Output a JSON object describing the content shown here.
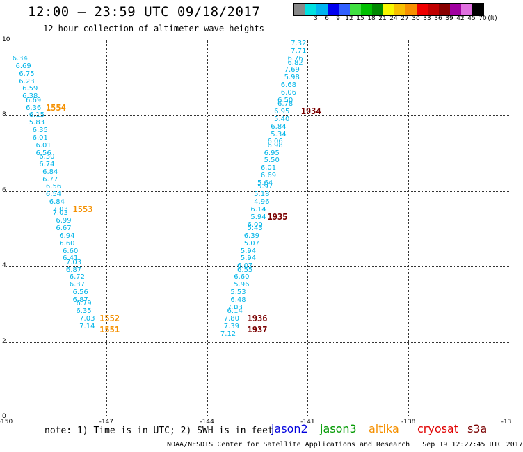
{
  "header": {
    "title": "12:00 – 23:59 UTC 09/18/2017",
    "subtitle": "12 hour collection of altimeter wave heights"
  },
  "legend": {
    "unit": "(ft)",
    "items": [
      {
        "label": "",
        "color": "#888888"
      },
      {
        "label": "3",
        "color": "#00e0e0"
      },
      {
        "label": "6",
        "color": "#00b4f0"
      },
      {
        "label": "9",
        "color": "#0000f0"
      },
      {
        "label": "12",
        "color": "#3060ff"
      },
      {
        "label": "15",
        "color": "#40e040"
      },
      {
        "label": "18",
        "color": "#00c000"
      },
      {
        "label": "21",
        "color": "#008800"
      },
      {
        "label": "24",
        "color": "#f8f800"
      },
      {
        "label": "27",
        "color": "#f8c000"
      },
      {
        "label": "30",
        "color": "#f89000"
      },
      {
        "label": "33",
        "color": "#f00000"
      },
      {
        "label": "36",
        "color": "#c00000"
      },
      {
        "label": "39",
        "color": "#880000"
      },
      {
        "label": "42",
        "color": "#a000a0"
      },
      {
        "label": "45",
        "color": "#e070e0"
      },
      {
        "label": "70",
        "color": "#000000"
      }
    ]
  },
  "axes": {
    "yticks": [
      "10",
      "8",
      "6",
      "4",
      "2",
      "0"
    ],
    "xticks": [
      "-150",
      "-147",
      "-144",
      "-141",
      "-138",
      "-13"
    ]
  },
  "chart_data": {
    "type": "scatter",
    "xlim": [
      -150,
      -135
    ],
    "ylim": [
      0,
      10
    ],
    "tracks": [
      {
        "name": "left-track",
        "points": [
          {
            "x": -149.8,
            "y": 9.5,
            "value": "6.34"
          },
          {
            "x": -149.7,
            "y": 9.3,
            "value": "6.69"
          },
          {
            "x": -149.6,
            "y": 9.1,
            "value": "6.75"
          },
          {
            "x": -149.6,
            "y": 8.9,
            "value": "6.23"
          },
          {
            "x": -149.5,
            "y": 8.7,
            "value": "6.59"
          },
          {
            "x": -149.5,
            "y": 8.5,
            "value": "6.38"
          },
          {
            "x": -149.4,
            "y": 8.4,
            "value": "6.69"
          },
          {
            "x": -149.4,
            "y": 8.2,
            "value": "6.36"
          },
          {
            "x": -149.3,
            "y": 8.0,
            "value": "6.15"
          },
          {
            "x": -149.3,
            "y": 7.8,
            "value": "5.83"
          },
          {
            "x": -149.2,
            "y": 7.6,
            "value": "6.35"
          },
          {
            "x": -149.2,
            "y": 7.4,
            "value": "6.01"
          },
          {
            "x": -149.1,
            "y": 7.2,
            "value": "6.01"
          },
          {
            "x": -149.1,
            "y": 7.0,
            "value": "6.56"
          },
          {
            "x": -149.0,
            "y": 6.9,
            "value": "6.30"
          },
          {
            "x": -149.0,
            "y": 6.7,
            "value": "6.74"
          },
          {
            "x": -148.9,
            "y": 6.5,
            "value": "6.84"
          },
          {
            "x": -148.9,
            "y": 6.3,
            "value": "6.77"
          },
          {
            "x": -148.8,
            "y": 6.1,
            "value": "6.56"
          },
          {
            "x": -148.8,
            "y": 5.9,
            "value": "6.54"
          },
          {
            "x": -148.7,
            "y": 5.7,
            "value": "6.84"
          },
          {
            "x": -148.6,
            "y": 5.5,
            "value": "7.03"
          },
          {
            "x": -148.6,
            "y": 5.4,
            "value": "7.03"
          },
          {
            "x": -148.5,
            "y": 5.2,
            "value": "6.99"
          },
          {
            "x": -148.5,
            "y": 5.0,
            "value": "6.67"
          },
          {
            "x": -148.4,
            "y": 4.8,
            "value": "6.94"
          },
          {
            "x": -148.4,
            "y": 4.6,
            "value": "6.60"
          },
          {
            "x": -148.3,
            "y": 4.4,
            "value": "6.60"
          },
          {
            "x": -148.3,
            "y": 4.2,
            "value": "6.41"
          },
          {
            "x": -148.2,
            "y": 4.1,
            "value": "7.03"
          },
          {
            "x": -148.2,
            "y": 3.9,
            "value": "6.87"
          },
          {
            "x": -148.1,
            "y": 3.7,
            "value": "6.72"
          },
          {
            "x": -148.1,
            "y": 3.5,
            "value": "6.37"
          },
          {
            "x": -148.0,
            "y": 3.3,
            "value": "6.56"
          },
          {
            "x": -148.0,
            "y": 3.1,
            "value": "6.87"
          },
          {
            "x": -147.9,
            "y": 3.0,
            "value": "6.79"
          },
          {
            "x": -147.9,
            "y": 2.8,
            "value": "6.35"
          },
          {
            "x": -147.8,
            "y": 2.6,
            "value": "7.03"
          },
          {
            "x": -147.8,
            "y": 2.4,
            "value": "7.14"
          }
        ]
      },
      {
        "name": "right-track",
        "points": [
          {
            "x": -141.5,
            "y": 9.9,
            "value": "7.32"
          },
          {
            "x": -141.5,
            "y": 9.7,
            "value": "7.71"
          },
          {
            "x": -141.6,
            "y": 9.5,
            "value": "6.76"
          },
          {
            "x": -141.6,
            "y": 9.4,
            "value": "6.82"
          },
          {
            "x": -141.7,
            "y": 9.2,
            "value": "7.69"
          },
          {
            "x": -141.7,
            "y": 9.0,
            "value": "5.98"
          },
          {
            "x": -141.8,
            "y": 8.8,
            "value": "6.68"
          },
          {
            "x": -141.8,
            "y": 8.6,
            "value": "6.06"
          },
          {
            "x": -141.9,
            "y": 8.4,
            "value": "6.50"
          },
          {
            "x": -141.9,
            "y": 8.3,
            "value": "6.78"
          },
          {
            "x": -142.0,
            "y": 8.1,
            "value": "6.95"
          },
          {
            "x": -142.0,
            "y": 7.9,
            "value": "5.40"
          },
          {
            "x": -142.1,
            "y": 7.7,
            "value": "6.84"
          },
          {
            "x": -142.1,
            "y": 7.5,
            "value": "5.34"
          },
          {
            "x": -142.2,
            "y": 7.3,
            "value": "6.06"
          },
          {
            "x": -142.2,
            "y": 7.2,
            "value": "6.98"
          },
          {
            "x": -142.3,
            "y": 7.0,
            "value": "6.95"
          },
          {
            "x": -142.3,
            "y": 6.8,
            "value": "5.50"
          },
          {
            "x": -142.4,
            "y": 6.6,
            "value": "6.01"
          },
          {
            "x": -142.4,
            "y": 6.4,
            "value": "6.69"
          },
          {
            "x": -142.5,
            "y": 6.2,
            "value": "5.64"
          },
          {
            "x": -142.5,
            "y": 6.1,
            "value": "5.97"
          },
          {
            "x": -142.6,
            "y": 5.9,
            "value": "5.18"
          },
          {
            "x": -142.6,
            "y": 5.7,
            "value": "4.96"
          },
          {
            "x": -142.7,
            "y": 5.5,
            "value": "6.14"
          },
          {
            "x": -142.7,
            "y": 5.3,
            "value": "5.94"
          },
          {
            "x": -142.8,
            "y": 5.1,
            "value": "6.00"
          },
          {
            "x": -142.8,
            "y": 5.0,
            "value": "5.43"
          },
          {
            "x": -142.9,
            "y": 4.8,
            "value": "6.39"
          },
          {
            "x": -142.9,
            "y": 4.6,
            "value": "5.07"
          },
          {
            "x": -143.0,
            "y": 4.4,
            "value": "5.94"
          },
          {
            "x": -143.0,
            "y": 4.2,
            "value": "5.94"
          },
          {
            "x": -143.1,
            "y": 4.0,
            "value": "6.07"
          },
          {
            "x": -143.1,
            "y": 3.9,
            "value": "6.55"
          },
          {
            "x": -143.2,
            "y": 3.7,
            "value": "6.60"
          },
          {
            "x": -143.2,
            "y": 3.5,
            "value": "5.96"
          },
          {
            "x": -143.3,
            "y": 3.3,
            "value": "5.53"
          },
          {
            "x": -143.3,
            "y": 3.1,
            "value": "6.48"
          },
          {
            "x": -143.4,
            "y": 2.9,
            "value": "7.03"
          },
          {
            "x": -143.4,
            "y": 2.8,
            "value": "6.14"
          },
          {
            "x": -143.5,
            "y": 2.6,
            "value": "7.80"
          },
          {
            "x": -143.5,
            "y": 2.4,
            "value": "7.39"
          },
          {
            "x": -143.6,
            "y": 2.2,
            "value": "7.12"
          }
        ]
      }
    ],
    "pass_times": [
      {
        "label": "1554",
        "satellite": "altika",
        "x": -148.8,
        "y": 8.2
      },
      {
        "label": "1553",
        "satellite": "altika",
        "x": -148.0,
        "y": 5.5
      },
      {
        "label": "1552",
        "satellite": "altika",
        "x": -147.2,
        "y": 2.6
      },
      {
        "label": "1551",
        "satellite": "altika",
        "x": -147.2,
        "y": 2.3
      },
      {
        "label": "1934",
        "satellite": "s3a",
        "x": -141.2,
        "y": 8.1
      },
      {
        "label": "1935",
        "satellite": "s3a",
        "x": -142.2,
        "y": 5.3
      },
      {
        "label": "1936",
        "satellite": "s3a",
        "x": -142.8,
        "y": 2.6
      },
      {
        "label": "1937",
        "satellite": "s3a",
        "x": -142.8,
        "y": 2.3
      }
    ]
  },
  "footer": {
    "note": "note: 1) Time is in UTC; 2) SWH is in feet",
    "satellites": [
      {
        "label": "jason2",
        "color": "#0000dd"
      },
      {
        "label": "jason3",
        "color": "#009900"
      },
      {
        "label": "altika",
        "color": "#f59000"
      },
      {
        "label": "cryosat",
        "color": "#e00000"
      },
      {
        "label": "s3a",
        "color": "#7a0000"
      }
    ],
    "credit": "NOAA/NESDIS Center for Satellite Applications and Research",
    "timestamp": "Sep 19 12:27:45 UTC 2017"
  }
}
